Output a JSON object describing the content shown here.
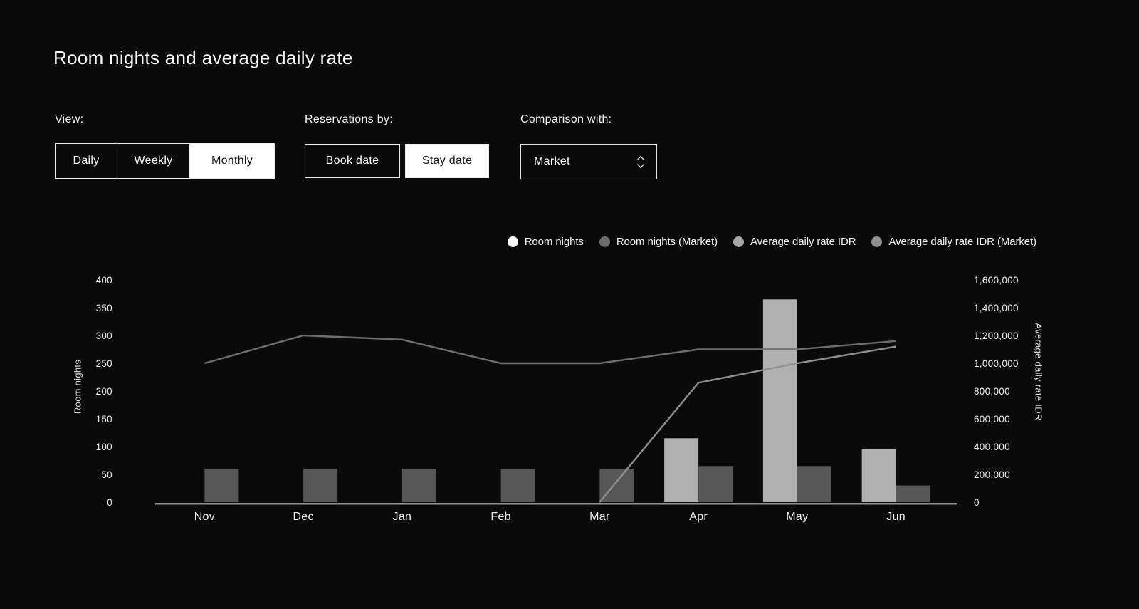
{
  "page": {
    "title": "Room nights and average daily rate"
  },
  "controls": {
    "view": {
      "label": "View:",
      "options": [
        "Daily",
        "Weekly",
        "Monthly"
      ],
      "selected": "Monthly"
    },
    "reservations_by": {
      "label": "Reservations by:",
      "options": [
        "Book date",
        "Stay date"
      ],
      "selected": "Stay date"
    },
    "comparison": {
      "label": "Comparison with:",
      "value": "Market"
    }
  },
  "legend": [
    {
      "label": "Room nights",
      "color": "#ffffff"
    },
    {
      "label": "Room nights (Market)",
      "color": "#6e6e6e"
    },
    {
      "label": "Average daily rate IDR",
      "color": "#a6a6a6"
    },
    {
      "label": "Average daily rate IDR (Market)",
      "color": "#8f8f8f"
    }
  ],
  "chart_data": {
    "type": "bar+line combo",
    "categories": [
      "Nov",
      "Dec",
      "Jan",
      "Feb",
      "Mar",
      "Apr",
      "May",
      "Jun"
    ],
    "series": [
      {
        "name": "Room nights",
        "type": "bar",
        "axis": "left",
        "color": "#b0b0b0",
        "values": [
          null,
          null,
          null,
          null,
          null,
          115,
          365,
          95
        ]
      },
      {
        "name": "Room nights (Market)",
        "type": "bar",
        "axis": "left",
        "color": "#575757",
        "values": [
          60,
          60,
          60,
          60,
          60,
          65,
          65,
          30
        ]
      },
      {
        "name": "Average daily rate IDR",
        "type": "line",
        "axis": "right",
        "color": "#8f8f8f",
        "values": [
          null,
          null,
          null,
          null,
          0,
          860000,
          1000000,
          1120000
        ]
      },
      {
        "name": "Average daily rate IDR (Market)",
        "type": "line",
        "axis": "right",
        "color": "#6e6e6e",
        "values": [
          1000000,
          1200000,
          1170000,
          1000000,
          1000000,
          1100000,
          1100000,
          1160000
        ]
      }
    ],
    "left_axis": {
      "title": "Room nights",
      "min": 0,
      "max": 400,
      "step": 50,
      "ticks": [
        0,
        50,
        100,
        150,
        200,
        250,
        300,
        350,
        400
      ]
    },
    "right_axis": {
      "title": "Average daily rate IDR",
      "min": 0,
      "max": 1600000,
      "step": 200000,
      "ticks": [
        0,
        200000,
        400000,
        600000,
        800000,
        1000000,
        1200000,
        1400000,
        1600000
      ]
    },
    "grid": false,
    "legend_position": "top-right",
    "baseline_color": "#909090"
  }
}
